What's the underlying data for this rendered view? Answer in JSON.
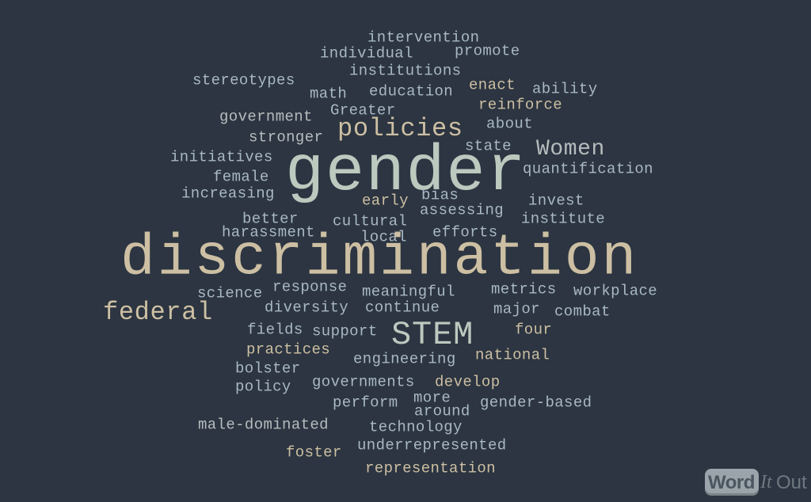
{
  "words": [
    {
      "text": "intervention",
      "color": "#a8b8c4"
    },
    {
      "text": "individual",
      "color": "#a8b8c4"
    },
    {
      "text": "promote",
      "color": "#a8b8c4"
    },
    {
      "text": "institutions",
      "color": "#a8b8c4"
    },
    {
      "text": "stereotypes",
      "color": "#a8b8c4"
    },
    {
      "text": "math",
      "color": "#a8b8c4"
    },
    {
      "text": "education",
      "color": "#a8b8c4"
    },
    {
      "text": "enact",
      "color": "#cdbfa3"
    },
    {
      "text": "ability",
      "color": "#a8b8c4"
    },
    {
      "text": "Greater",
      "color": "#a8b8c4"
    },
    {
      "text": "reinforce",
      "color": "#cdbfa3"
    },
    {
      "text": "government",
      "color": "#b6bcbe"
    },
    {
      "text": "policies",
      "color": "#cdbfa3"
    },
    {
      "text": "about",
      "color": "#a8b8c4"
    },
    {
      "text": "stronger",
      "color": "#b6bcbe"
    },
    {
      "text": "state",
      "color": "#a8b8c4"
    },
    {
      "text": "Women",
      "color": "#b6bcbe"
    },
    {
      "text": "initiatives",
      "color": "#a8b8c4"
    },
    {
      "text": "gender",
      "color": "#bcc9bf"
    },
    {
      "text": "quantification",
      "color": "#a8b8c4"
    },
    {
      "text": "female",
      "color": "#a8b8c4"
    },
    {
      "text": "increasing",
      "color": "#a8b8c4"
    },
    {
      "text": "early",
      "color": "#cdbfa3"
    },
    {
      "text": "bias",
      "color": "#a8b8c4"
    },
    {
      "text": "invest",
      "color": "#a8b8c4"
    },
    {
      "text": "assessing",
      "color": "#a8b8c4"
    },
    {
      "text": "better",
      "color": "#a8b8c4"
    },
    {
      "text": "cultural",
      "color": "#a8b8c4"
    },
    {
      "text": "institute",
      "color": "#a8b8c4"
    },
    {
      "text": "harassment",
      "color": "#a8b8c4"
    },
    {
      "text": "local",
      "color": "#a8b8c4"
    },
    {
      "text": "efforts",
      "color": "#a8b8c4"
    },
    {
      "text": "discrimination",
      "color": "#cdbfa3"
    },
    {
      "text": "response",
      "color": "#a8b8c4"
    },
    {
      "text": "science",
      "color": "#a8b8c4"
    },
    {
      "text": "meaningful",
      "color": "#a8b8c4"
    },
    {
      "text": "metrics",
      "color": "#a8b8c4"
    },
    {
      "text": "workplace",
      "color": "#a8b8c4"
    },
    {
      "text": "federal",
      "color": "#cdbfa3"
    },
    {
      "text": "diversity",
      "color": "#a8b8c4"
    },
    {
      "text": "continue",
      "color": "#a8b8c4"
    },
    {
      "text": "major",
      "color": "#a8b8c4"
    },
    {
      "text": "combat",
      "color": "#a8b8c4"
    },
    {
      "text": "fields",
      "color": "#a8b8c4"
    },
    {
      "text": "support",
      "color": "#a8b8c4"
    },
    {
      "text": "STEM",
      "color": "#bcc9bf"
    },
    {
      "text": "four",
      "color": "#cdbfa3"
    },
    {
      "text": "practices",
      "color": "#cdbfa3"
    },
    {
      "text": "engineering",
      "color": "#a8b8c4"
    },
    {
      "text": "national",
      "color": "#cdbfa3"
    },
    {
      "text": "bolster",
      "color": "#a8b8c4"
    },
    {
      "text": "governments",
      "color": "#a8b8c4"
    },
    {
      "text": "develop",
      "color": "#cdbfa3"
    },
    {
      "text": "policy",
      "color": "#a8b8c4"
    },
    {
      "text": "more",
      "color": "#a8b8c4"
    },
    {
      "text": "perform",
      "color": "#a8b8c4"
    },
    {
      "text": "around",
      "color": "#a8b8c4"
    },
    {
      "text": "gender-based",
      "color": "#a8b8c4"
    },
    {
      "text": "male-dominated",
      "color": "#b6bcbe"
    },
    {
      "text": "technology",
      "color": "#a8b8c4"
    },
    {
      "text": "underrepresented",
      "color": "#a8b8c4"
    },
    {
      "text": "foster",
      "color": "#cdbfa3"
    },
    {
      "text": "representation",
      "color": "#cdbfa3"
    }
  ],
  "logo": {
    "part1": "Word",
    "part2": "It",
    "part3": "Out"
  }
}
